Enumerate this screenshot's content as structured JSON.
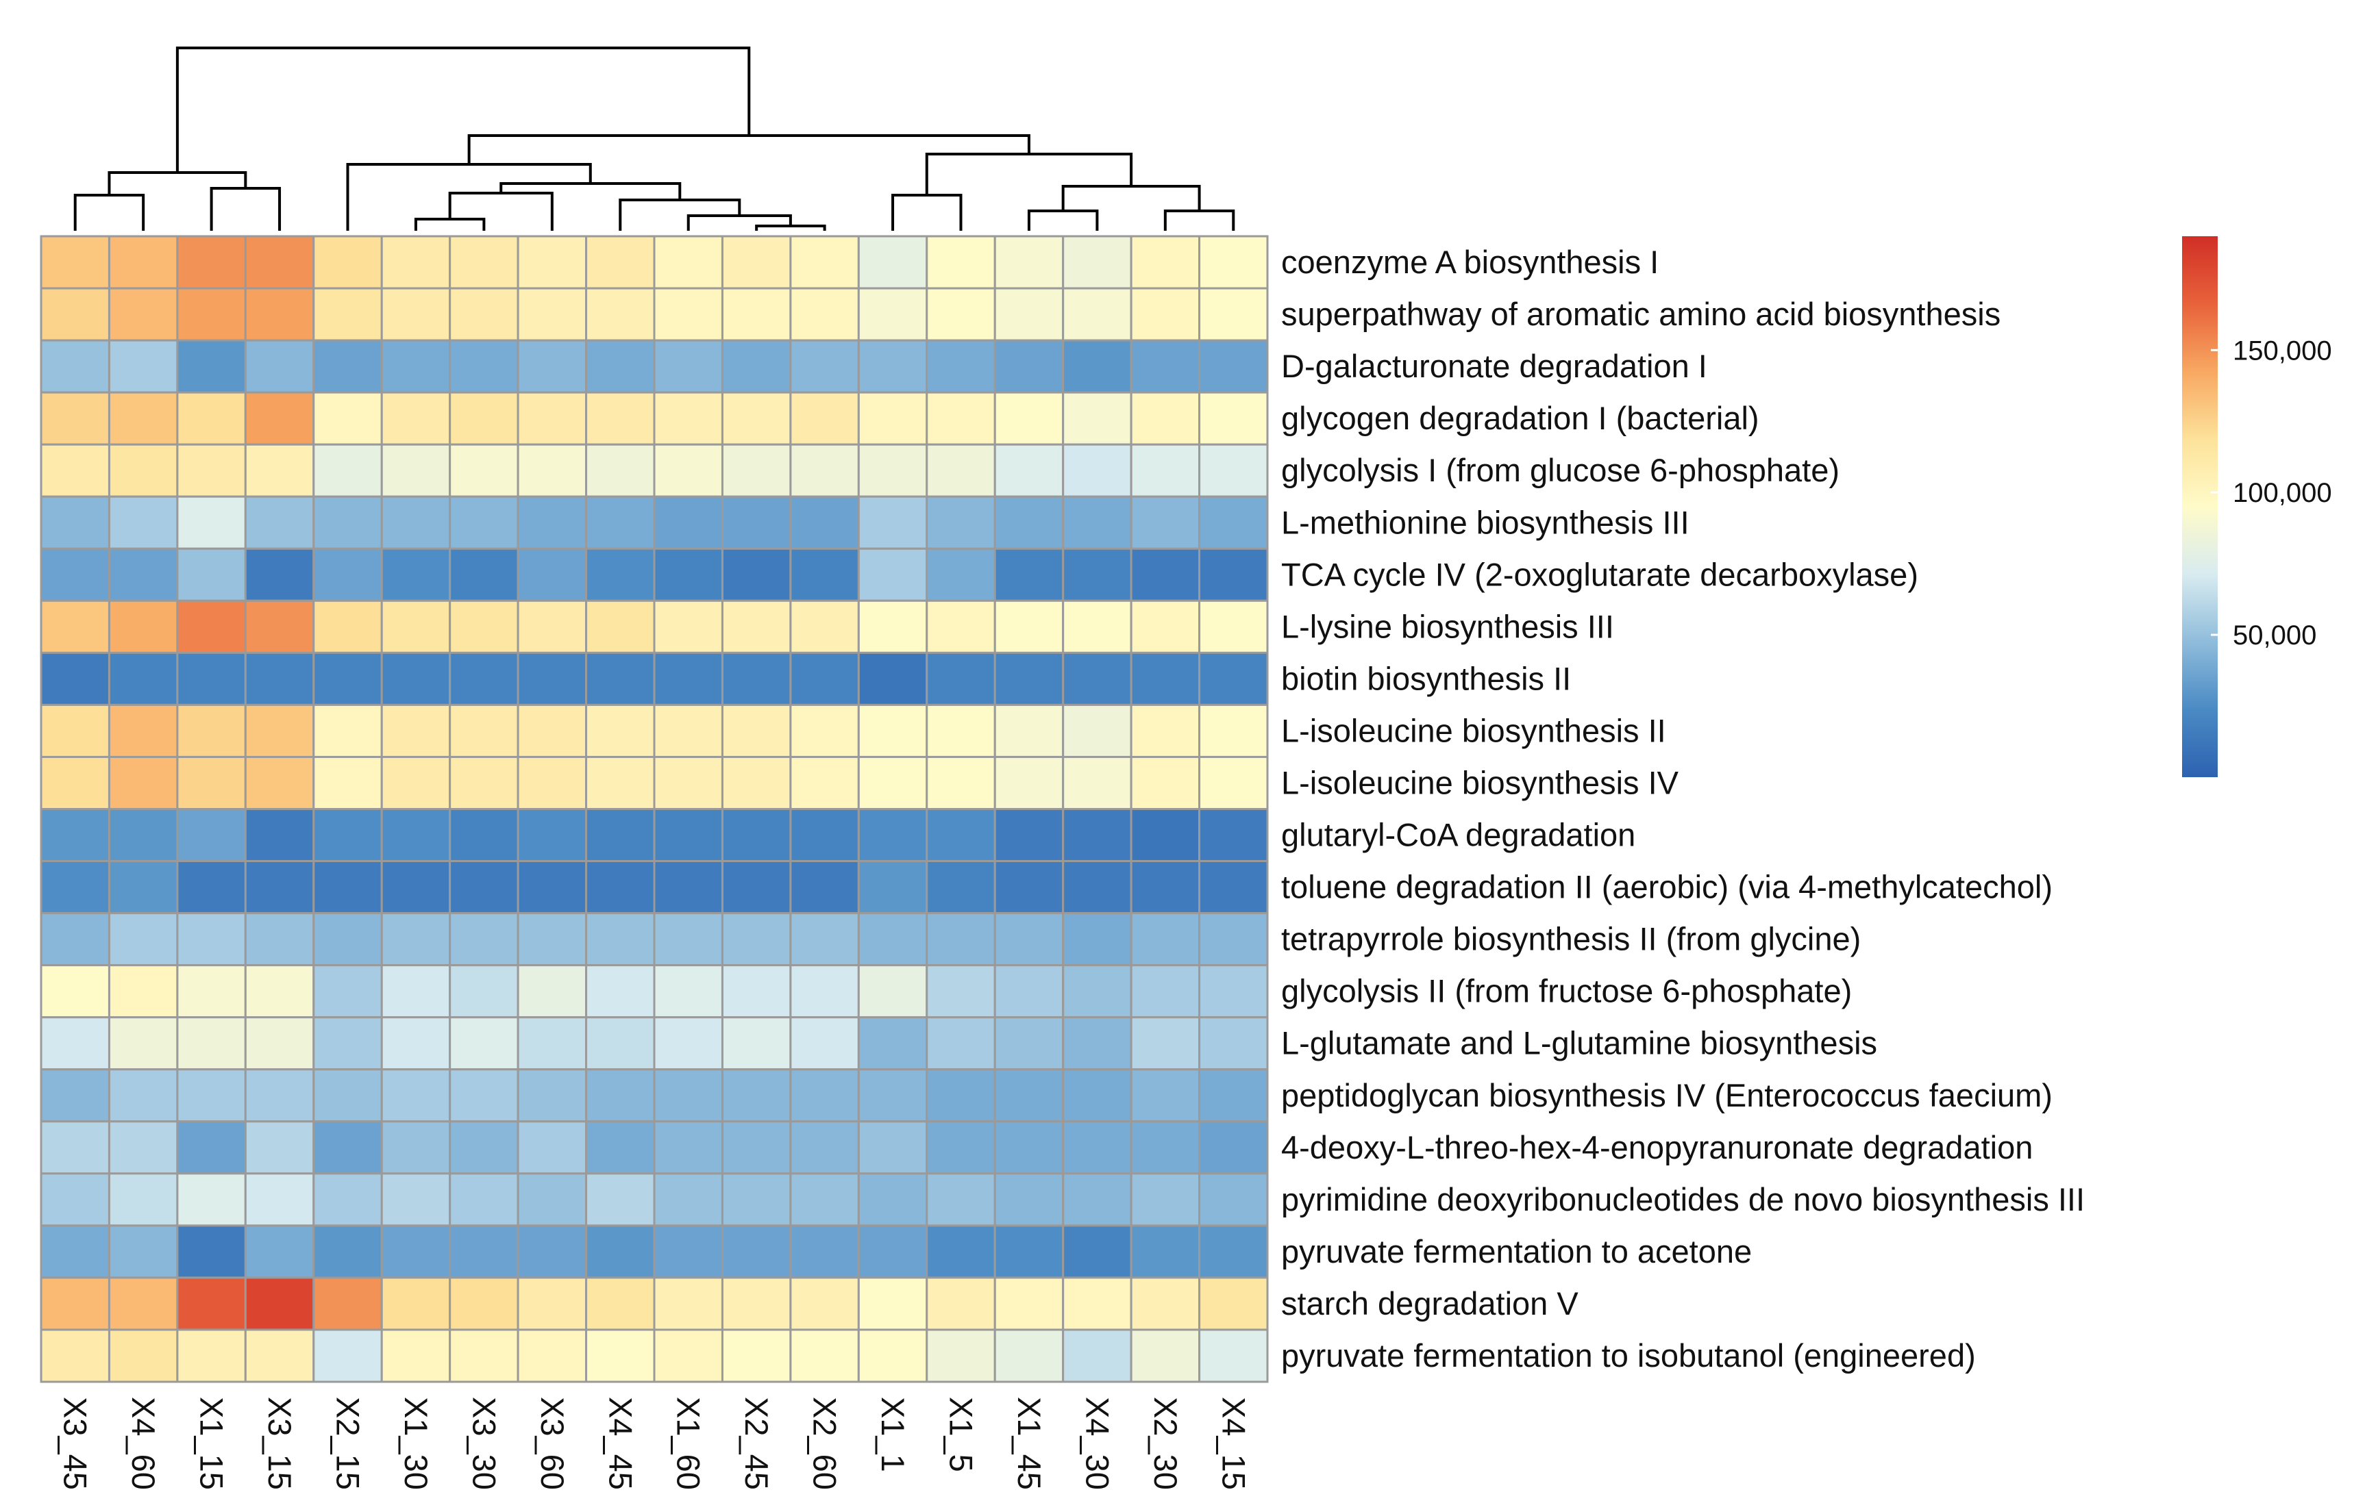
{
  "chart_data": {
    "type": "heatmap",
    "columns": [
      "X3_45",
      "X4_60",
      "X1_15",
      "X3_15",
      "X2_15",
      "X1_30",
      "X3_30",
      "X3_60",
      "X4_45",
      "X1_60",
      "X2_45",
      "X2_60",
      "X1_1",
      "X1_5",
      "X1_45",
      "X4_30",
      "X2_30",
      "X4_15"
    ],
    "rows": [
      {
        "label": "coenzyme A biosynthesis I",
        "values": [
          130000,
          135000,
          150000,
          150000,
          120000,
          110000,
          110000,
          105000,
          110000,
          100000,
          105000,
          100000,
          80000,
          95000,
          90000,
          85000,
          100000,
          95000
        ]
      },
      {
        "label": "superpathway of aromatic amino acid biosynthesis",
        "values": [
          125000,
          135000,
          145000,
          145000,
          115000,
          110000,
          110000,
          105000,
          105000,
          100000,
          100000,
          100000,
          90000,
          95000,
          90000,
          90000,
          100000,
          95000
        ]
      },
      {
        "label": "D-galacturonate degradation I",
        "values": [
          50000,
          55000,
          30000,
          45000,
          35000,
          40000,
          40000,
          45000,
          40000,
          45000,
          40000,
          45000,
          45000,
          40000,
          35000,
          30000,
          35000,
          35000
        ]
      },
      {
        "label": "glycogen degradation I (bacterial)",
        "values": [
          125000,
          130000,
          120000,
          145000,
          100000,
          110000,
          115000,
          110000,
          110000,
          105000,
          105000,
          110000,
          100000,
          100000,
          95000,
          90000,
          100000,
          95000
        ]
      },
      {
        "label": "glycolysis I (from glucose 6-phosphate)",
        "values": [
          110000,
          115000,
          110000,
          105000,
          80000,
          85000,
          90000,
          90000,
          85000,
          90000,
          85000,
          85000,
          85000,
          85000,
          75000,
          70000,
          75000,
          75000
        ]
      },
      {
        "label": "L-methionine biosynthesis III",
        "values": [
          45000,
          55000,
          75000,
          50000,
          45000,
          45000,
          45000,
          40000,
          40000,
          35000,
          35000,
          35000,
          55000,
          45000,
          40000,
          40000,
          45000,
          40000
        ]
      },
      {
        "label": "TCA cycle IV (2-oxoglutarate decarboxylase)",
        "values": [
          35000,
          35000,
          50000,
          15000,
          35000,
          25000,
          20000,
          35000,
          25000,
          20000,
          15000,
          20000,
          55000,
          40000,
          20000,
          20000,
          15000,
          15000
        ]
      },
      {
        "label": "L-lysine biosynthesis III",
        "values": [
          130000,
          140000,
          155000,
          150000,
          120000,
          115000,
          115000,
          110000,
          115000,
          105000,
          105000,
          105000,
          95000,
          100000,
          95000,
          95000,
          100000,
          95000
        ]
      },
      {
        "label": "biotin biosynthesis II",
        "values": [
          15000,
          20000,
          20000,
          20000,
          20000,
          20000,
          20000,
          20000,
          20000,
          20000,
          20000,
          20000,
          12000,
          20000,
          20000,
          20000,
          20000,
          20000
        ]
      },
      {
        "label": "L-isoleucine biosynthesis II",
        "values": [
          120000,
          135000,
          125000,
          130000,
          100000,
          110000,
          110000,
          110000,
          105000,
          105000,
          105000,
          100000,
          95000,
          95000,
          90000,
          85000,
          100000,
          95000
        ]
      },
      {
        "label": "L-isoleucine biosynthesis IV",
        "values": [
          120000,
          135000,
          125000,
          130000,
          100000,
          110000,
          110000,
          110000,
          105000,
          105000,
          105000,
          100000,
          95000,
          95000,
          90000,
          90000,
          100000,
          95000
        ]
      },
      {
        "label": "glutaryl-CoA degradation",
        "values": [
          30000,
          30000,
          35000,
          15000,
          25000,
          25000,
          20000,
          25000,
          20000,
          20000,
          20000,
          20000,
          25000,
          25000,
          15000,
          15000,
          12000,
          15000
        ]
      },
      {
        "label": "toluene degradation II (aerobic) (via 4-methylcatechol)",
        "values": [
          25000,
          30000,
          15000,
          15000,
          15000,
          15000,
          15000,
          15000,
          15000,
          15000,
          15000,
          15000,
          30000,
          20000,
          15000,
          15000,
          15000,
          15000
        ]
      },
      {
        "label": "tetrapyrrole biosynthesis II (from glycine)",
        "values": [
          45000,
          55000,
          55000,
          50000,
          45000,
          50000,
          50000,
          50000,
          50000,
          50000,
          50000,
          50000,
          45000,
          45000,
          45000,
          40000,
          45000,
          45000
        ]
      },
      {
        "label": "glycolysis II (from fructose 6-phosphate)",
        "values": [
          95000,
          100000,
          90000,
          90000,
          55000,
          70000,
          65000,
          80000,
          70000,
          75000,
          70000,
          70000,
          80000,
          60000,
          55000,
          50000,
          55000,
          55000
        ]
      },
      {
        "label": "L-glutamate and L-glutamine biosynthesis",
        "values": [
          70000,
          85000,
          85000,
          85000,
          55000,
          70000,
          75000,
          65000,
          65000,
          70000,
          75000,
          70000,
          45000,
          55000,
          50000,
          45000,
          60000,
          55000
        ]
      },
      {
        "label": "peptidoglycan biosynthesis IV (Enterococcus faecium)",
        "values": [
          45000,
          55000,
          55000,
          55000,
          50000,
          55000,
          55000,
          50000,
          45000,
          45000,
          45000,
          45000,
          45000,
          40000,
          40000,
          40000,
          45000,
          40000
        ]
      },
      {
        "label": "4-deoxy-L-threo-hex-4-enopyranuronate degradation",
        "values": [
          60000,
          60000,
          35000,
          60000,
          35000,
          50000,
          45000,
          55000,
          40000,
          45000,
          45000,
          45000,
          50000,
          40000,
          40000,
          40000,
          40000,
          35000
        ]
      },
      {
        "label": "pyrimidine deoxyribonucleotides de novo biosynthesis III",
        "values": [
          55000,
          65000,
          75000,
          70000,
          55000,
          60000,
          55000,
          50000,
          60000,
          50000,
          50000,
          50000,
          45000,
          50000,
          45000,
          45000,
          50000,
          45000
        ]
      },
      {
        "label": "pyruvate fermentation to acetone",
        "values": [
          40000,
          45000,
          15000,
          40000,
          30000,
          35000,
          35000,
          35000,
          30000,
          35000,
          35000,
          35000,
          35000,
          25000,
          25000,
          20000,
          30000,
          30000
        ]
      },
      {
        "label": "starch degradation V",
        "values": [
          135000,
          135000,
          170000,
          180000,
          150000,
          120000,
          120000,
          110000,
          115000,
          105000,
          105000,
          105000,
          95000,
          105000,
          100000,
          100000,
          105000,
          115000
        ]
      },
      {
        "label": "pyruvate fermentation to isobutanol (engineered)",
        "values": [
          110000,
          115000,
          105000,
          105000,
          70000,
          100000,
          100000,
          100000,
          95000,
          100000,
          95000,
          95000,
          95000,
          85000,
          80000,
          65000,
          85000,
          75000
        ]
      }
    ],
    "colorbar": {
      "min": 0,
      "max": 190000,
      "ticks": [
        150000,
        100000,
        50000
      ],
      "tick_labels": [
        "150,000",
        "100,000",
        "50,000"
      ],
      "colors": [
        "#2d62b0",
        "#4a8ac4",
        "#8fbcdb",
        "#d8ebf0",
        "#fffbc9",
        "#fde29a",
        "#f8a862",
        "#e8623b",
        "#d12f26"
      ]
    },
    "cell_border_color": "#9a9a9a",
    "dendrogram_color": "#000000"
  }
}
